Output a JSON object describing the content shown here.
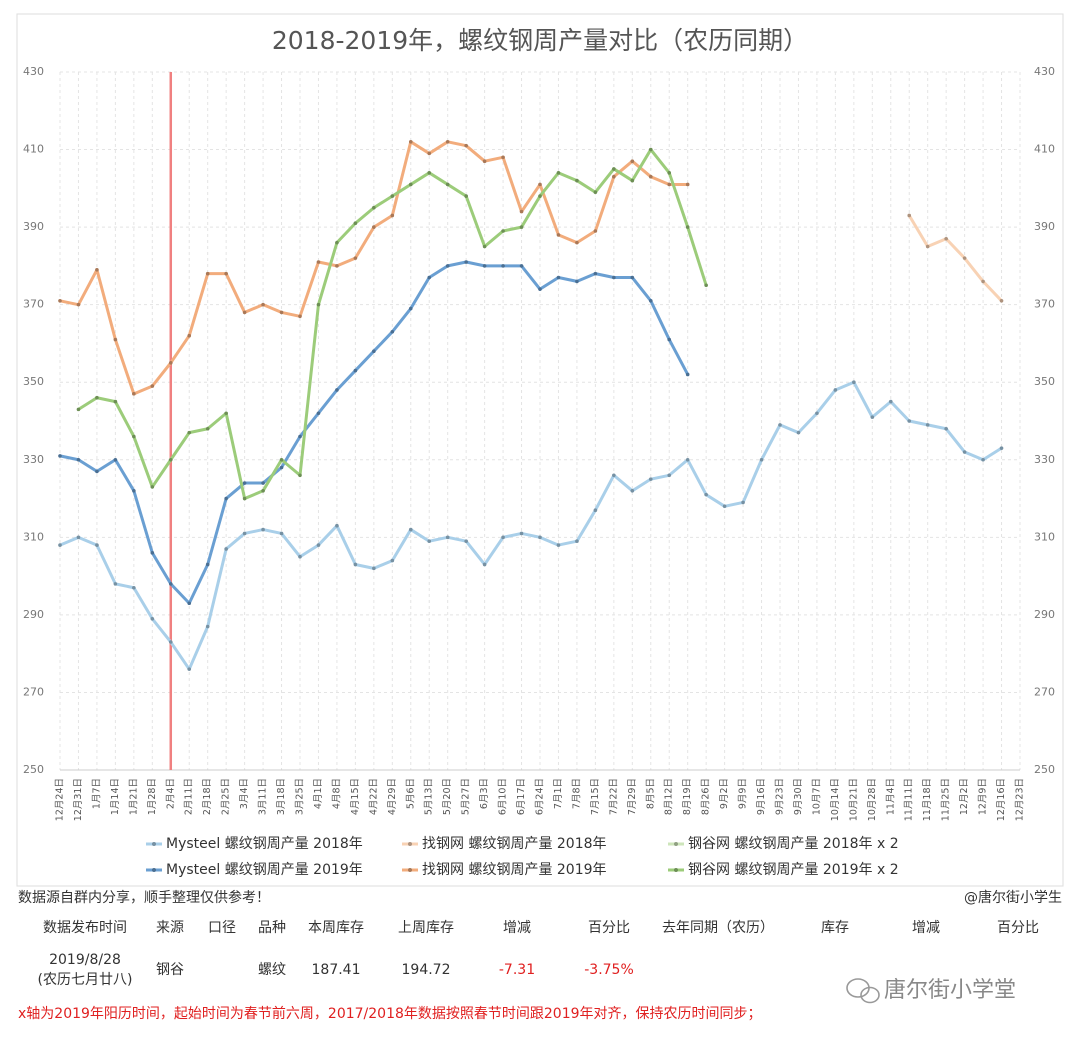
{
  "chart_data": {
    "type": "line",
    "title": "2018-2019年，螺纹钢周产量对比（农历同期）",
    "categories": [
      "12月24日",
      "12月31日",
      "1月7日",
      "1月14日",
      "1月21日",
      "1月28日",
      "2月4日",
      "2月11日",
      "2月18日",
      "2月25日",
      "3月4日",
      "3月11日",
      "3月18日",
      "3月25日",
      "4月1日",
      "4月8日",
      "4月15日",
      "4月22日",
      "4月29日",
      "5月6日",
      "5月13日",
      "5月20日",
      "5月27日",
      "6月3日",
      "6月10日",
      "6月17日",
      "6月24日",
      "7月1日",
      "7月8日",
      "7月15日",
      "7月22日",
      "7月29日",
      "8月5日",
      "8月12日",
      "8月19日",
      "8月26日",
      "9月2日",
      "9月9日",
      "9月16日",
      "9月23日",
      "9月30日",
      "10月7日",
      "10月14日",
      "10月21日",
      "10月28日",
      "11月4日",
      "11月11日",
      "11月18日",
      "11月25日",
      "12月2日",
      "12月9日",
      "12月16日",
      "12月23日"
    ],
    "series": [
      {
        "name": "Mysteel 螺纹钢周产量 2018年",
        "color": "#a9cfe9",
        "values": [
          308,
          310,
          308,
          298,
          297,
          289,
          283,
          276,
          287,
          307,
          311,
          312,
          311,
          305,
          308,
          313,
          303,
          302,
          304,
          312,
          309,
          310,
          309,
          303,
          310,
          311,
          310,
          308,
          309,
          317,
          326,
          322,
          325,
          326,
          330,
          321,
          318,
          319,
          330,
          339,
          337,
          342,
          348,
          350,
          341,
          345,
          340,
          339,
          338,
          332,
          330,
          333,
          null
        ]
      },
      {
        "name": "找钢网 螺纹钢周产量 2018年",
        "color": "#f8d2b4",
        "values": [
          null,
          null,
          null,
          null,
          null,
          null,
          null,
          null,
          null,
          null,
          null,
          null,
          null,
          null,
          null,
          null,
          null,
          null,
          null,
          null,
          null,
          null,
          null,
          null,
          null,
          null,
          null,
          null,
          null,
          null,
          null,
          null,
          null,
          null,
          null,
          null,
          null,
          null,
          null,
          null,
          null,
          null,
          null,
          null,
          null,
          null,
          393,
          385,
          387,
          382,
          376,
          371,
          null
        ]
      },
      {
        "name": "钢谷网 螺纹钢周产量 2018年 x 2",
        "color": "#cde5ba",
        "values": [
          null,
          null,
          null,
          null,
          null,
          null,
          null,
          null,
          null,
          null,
          null,
          null,
          null,
          null,
          null,
          null,
          null,
          null,
          null,
          null,
          null,
          null,
          null,
          null,
          null,
          null,
          null,
          null,
          null,
          null,
          null,
          null,
          null,
          null,
          null,
          null,
          null,
          null,
          null,
          null,
          null,
          null,
          null,
          null,
          null,
          null,
          null,
          null,
          null,
          null,
          null,
          null,
          null
        ]
      },
      {
        "name": "Mysteel 螺纹钢周产量 2019年",
        "color": "#6a9fd2",
        "values": [
          331,
          330,
          327,
          330,
          322,
          306,
          298,
          293,
          303,
          320,
          324,
          324,
          328,
          336,
          342,
          348,
          353,
          358,
          363,
          369,
          377,
          380,
          381,
          380,
          380,
          380,
          374,
          377,
          376,
          378,
          377,
          377,
          371,
          361,
          352,
          null,
          null,
          null,
          null,
          null,
          null,
          null,
          null,
          null,
          null,
          null,
          null,
          null,
          null,
          null,
          null,
          null,
          null
        ]
      },
      {
        "name": "找钢网 螺纹钢周产量 2019年",
        "color": "#f2ac7c",
        "values": [
          371,
          370,
          379,
          361,
          347,
          349,
          355,
          362,
          378,
          378,
          368,
          370,
          368,
          367,
          381,
          380,
          382,
          390,
          393,
          412,
          409,
          412,
          411,
          407,
          408,
          394,
          401,
          388,
          386,
          389,
          403,
          407,
          403,
          401,
          401,
          null,
          null,
          null,
          null,
          null,
          null,
          null,
          null,
          null,
          null,
          null,
          null,
          null,
          null,
          null,
          null,
          null,
          null
        ]
      },
      {
        "name": "钢谷网 螺纹钢周产量 2019年 x 2",
        "color": "#9ccc7a",
        "values": [
          null,
          343,
          346,
          345,
          336,
          323,
          330,
          337,
          338,
          342,
          320,
          322,
          330,
          326,
          370,
          386,
          391,
          395,
          398,
          401,
          404,
          401,
          398,
          385,
          389,
          390,
          398,
          404,
          402,
          399,
          405,
          402,
          410,
          404,
          390,
          375,
          null,
          null,
          null,
          null,
          null,
          null,
          null,
          null,
          null,
          null,
          null,
          null,
          null,
          null,
          null,
          null,
          null
        ]
      }
    ],
    "ylim": [
      250,
      430
    ],
    "yticks": [
      250,
      270,
      290,
      310,
      330,
      350,
      370,
      390,
      410,
      430
    ],
    "y2lim": [
      250,
      430
    ],
    "y2ticks": [
      250,
      270,
      290,
      310,
      330,
      350,
      370,
      390,
      410,
      430
    ],
    "grid": true,
    "highlight": "2月4日",
    "highlight_color": "#f08080"
  },
  "notes": {
    "source": "数据源自群内分享，顺手整理仅供参考！",
    "author": "@唐尔街小学生",
    "footnote": "x轴为2019年阳历时间，起始时间为春节前六周，2017/2018年数据按照春节时间跟2019年对齐，保持农历时间同步；",
    "watermark": "唐尔街小学堂"
  },
  "table": {
    "header": [
      "数据发布时间",
      "来源",
      "口径",
      "品种",
      "本周库存",
      "上周库存",
      "增减",
      "百分比",
      "去年同期（农历）",
      "库存",
      "增减",
      "百分比"
    ],
    "row": {
      "date": "2019/8/28",
      "lunar": "(农历七月廿八)",
      "source": "钢谷",
      "variety": "螺纹",
      "this_week": 187.41,
      "last_week": 194.72,
      "change": -7.31,
      "pct": "-3.75%"
    }
  }
}
